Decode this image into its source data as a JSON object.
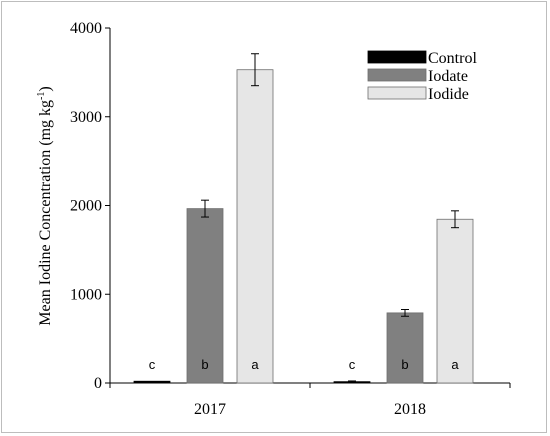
{
  "chart_data": {
    "type": "bar",
    "categories": [
      "2017",
      "2018"
    ],
    "series": [
      {
        "name": "Control",
        "color": "#000000",
        "values": [
          20,
          15
        ],
        "errors": [
          0,
          8
        ],
        "letters": [
          "c",
          "c"
        ]
      },
      {
        "name": "Iodate",
        "color": "#808080",
        "values": [
          1965,
          790
        ],
        "errors": [
          95,
          38
        ],
        "letters": [
          "b",
          "b"
        ]
      },
      {
        "name": "Iodide",
        "color": "#e6e6e6",
        "values": [
          3530,
          1845
        ],
        "errors": [
          180,
          95
        ],
        "letters": [
          "a",
          "a"
        ]
      }
    ],
    "ylabel": "Mean Iodine Concentration (mg kg",
    "ylabel_superscript": "-1",
    "ylabel_suffix": ")",
    "ylim": [
      0,
      4000
    ],
    "yticks": [
      "0",
      "1000",
      "2000",
      "3000",
      "4000"
    ],
    "grid": false,
    "legend_position": "top-right"
  }
}
